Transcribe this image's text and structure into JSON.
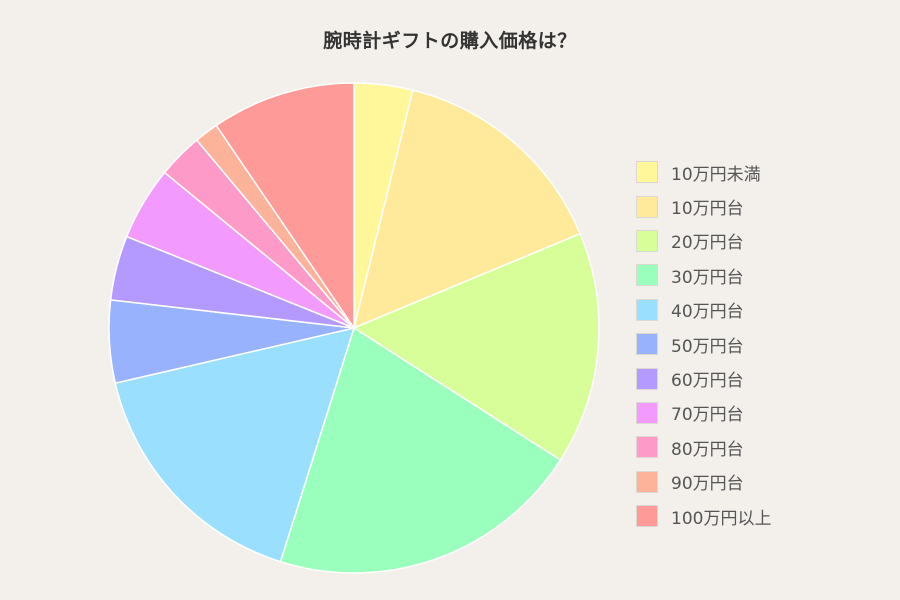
{
  "chart_data": {
    "type": "pie",
    "title": "腕時計ギフトの購入価格は？",
    "categories": [
      "10万円未満",
      "10万円台",
      "20万円台",
      "30万円台",
      "40万円台",
      "50万円台",
      "60万円台",
      "70万円台",
      "80万円台",
      "90万円台",
      "100万円以上"
    ],
    "values": [
      3.9,
      15.0,
      15.5,
      21.0,
      16.7,
      5.5,
      4.3,
      4.9,
      3.0,
      1.6,
      9.6
    ],
    "unit": "%",
    "colors": [
      "#fff79a",
      "#feea9a",
      "#d7fe98",
      "#9afebc",
      "#9ae0fe",
      "#98b2fe",
      "#b49afe",
      "#f39afe",
      "#fe9ac8",
      "#fdb29a",
      "#fe9a98"
    ],
    "start_angle_deg": 0,
    "direction": "clockwise",
    "legend_position": "right",
    "show_values": false
  }
}
